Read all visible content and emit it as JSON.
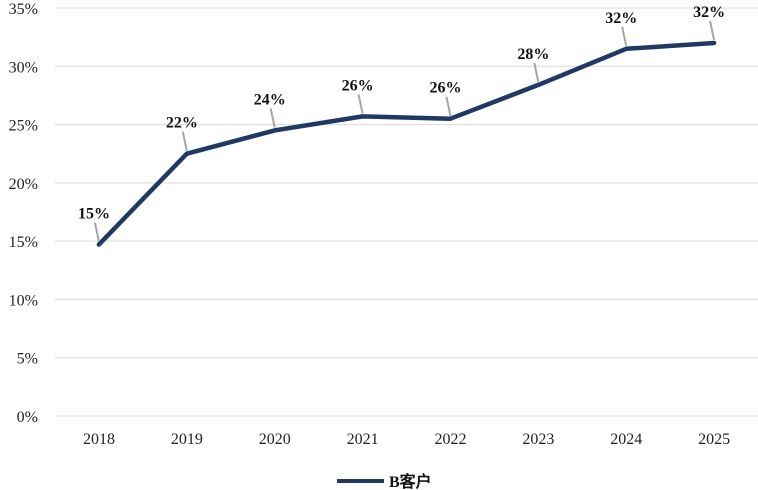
{
  "chart_data": {
    "type": "line",
    "categories": [
      "2018",
      "2019",
      "2020",
      "2021",
      "2022",
      "2023",
      "2024",
      "2025"
    ],
    "series": [
      {
        "name": "B客户",
        "values": [
          14.7,
          22.5,
          24.5,
          25.7,
          25.5,
          28.4,
          31.5,
          32.0
        ],
        "labels": [
          "15%",
          "22%",
          "24%",
          "26%",
          "26%",
          "28%",
          "32%",
          "32%"
        ],
        "color": "#1f3864"
      }
    ],
    "ylim": [
      0,
      35
    ],
    "yticks": [
      "0%",
      "5%",
      "10%",
      "15%",
      "20%",
      "25%",
      "30%",
      "35%"
    ],
    "ytick_values": [
      0,
      5,
      10,
      15,
      20,
      25,
      30,
      35
    ],
    "grid": true,
    "legend": "bottom-center",
    "grid_color": "#d9d9d9",
    "leader_color": "#a6a6a6"
  }
}
